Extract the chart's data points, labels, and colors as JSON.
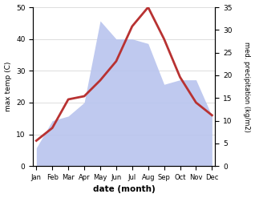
{
  "months": [
    "Jan",
    "Feb",
    "Mar",
    "Apr",
    "May",
    "Jun",
    "Jul",
    "Aug",
    "Sep",
    "Oct",
    "Nov",
    "Dec"
  ],
  "max_temp": [
    8,
    12,
    21,
    22,
    27,
    33,
    44,
    50,
    40,
    28,
    20,
    16
  ],
  "precipitation_kg": [
    4,
    10,
    11,
    14,
    32,
    28,
    28,
    27,
    18,
    19,
    19,
    11
  ],
  "temp_ylim": [
    0,
    50
  ],
  "precip_ylim": [
    0,
    35
  ],
  "temp_color": "#b83232",
  "precip_color_fill": "#b8c4ee",
  "xlabel": "date (month)",
  "ylabel_left": "max temp (C)",
  "ylabel_right": "med. precipitation (kg/m2)",
  "bg_color": "#ffffff",
  "grid_color": "#d0d0d0",
  "temp_linewidth": 2.0
}
